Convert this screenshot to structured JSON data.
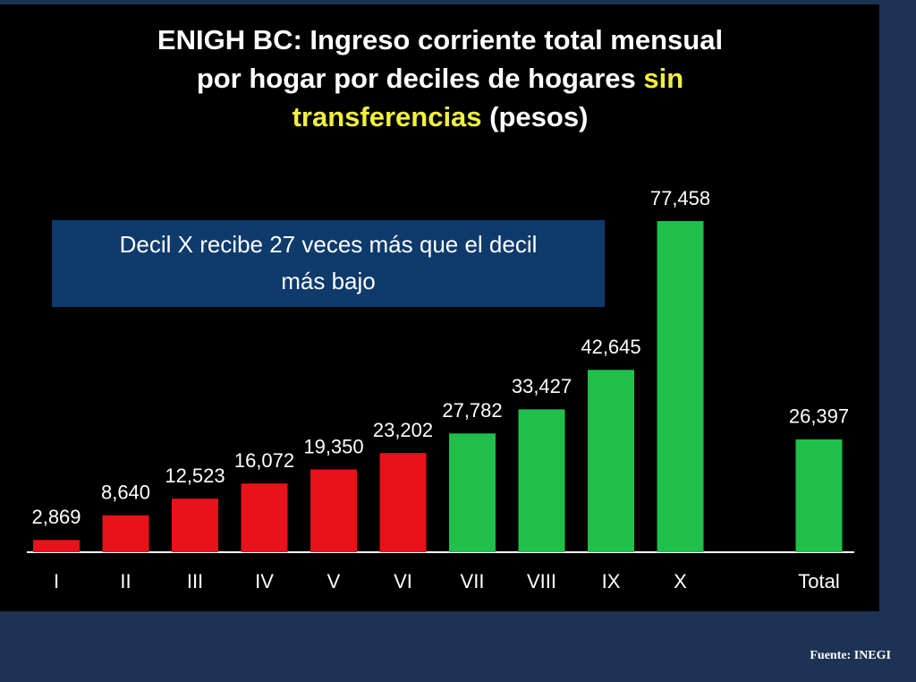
{
  "chart_data": {
    "type": "bar",
    "title_lines": [
      [
        {
          "text": "ENIGH BC: Ingreso corriente total mensual",
          "color": "#ffffff"
        }
      ],
      [
        {
          "text": "por hogar por deciles de hogares ",
          "color": "#ffffff"
        },
        {
          "text": "sin",
          "color": "#f2f03c"
        }
      ],
      [
        {
          "text": "transferencias",
          "color": "#f2f03c"
        },
        {
          "text": " (pesos)",
          "color": "#ffffff"
        }
      ]
    ],
    "annotation_lines": [
      "Decil X recibe 27 veces más que el decil",
      "más bajo"
    ],
    "categories": [
      "I",
      "II",
      "III",
      "IV",
      "V",
      "VI",
      "VII",
      "VIII",
      "IX",
      "X",
      "Total"
    ],
    "values": [
      2869,
      8640,
      12523,
      16072,
      19350,
      23202,
      27782,
      33427,
      42645,
      77458,
      26397
    ],
    "value_labels": [
      "2,869",
      "8,640",
      "12,523",
      "16,072",
      "19,350",
      "23,202",
      "27,782",
      "33,427",
      "42,645",
      "77,458",
      "26,397"
    ],
    "colors": [
      "#e8121a",
      "#e8121a",
      "#e8121a",
      "#e8121a",
      "#e8121a",
      "#e8121a",
      "#1fbf4a",
      "#1fbf4a",
      "#1fbf4a",
      "#1fbf4a",
      "#1fbf4a"
    ],
    "source": "Fuente: INEGI"
  }
}
